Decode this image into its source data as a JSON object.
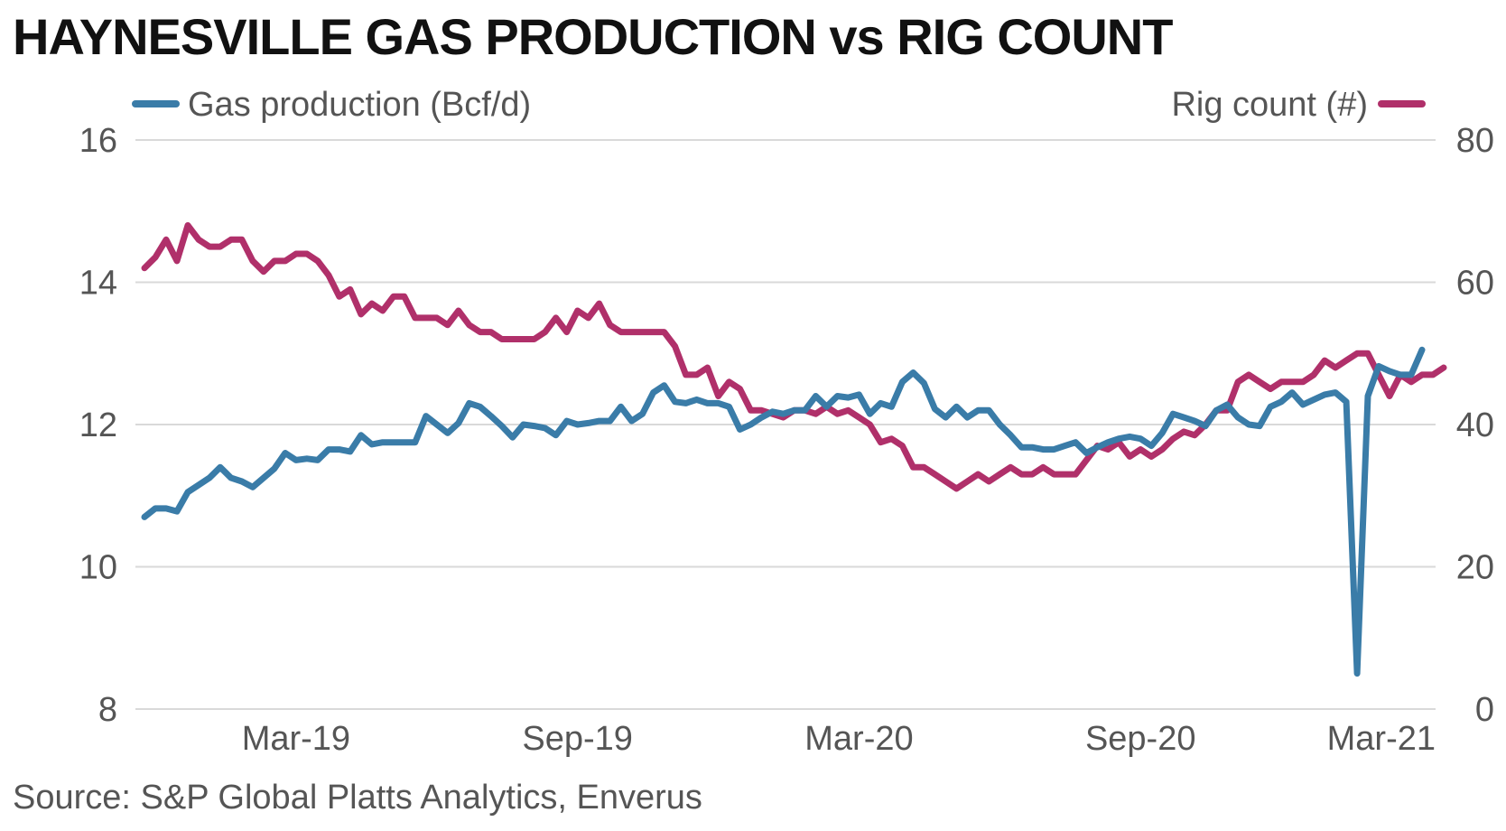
{
  "title": "HAYNESVILLE GAS PRODUCTION vs RIG COUNT",
  "source": "Source: S&P Global Platts Analytics, Enverus",
  "chart_data": {
    "type": "line",
    "title": "HAYNESVILLE GAS PRODUCTION vs RIG COUNT",
    "x_tick_labels": [
      "Mar-19",
      "Sep-19",
      "Mar-20",
      "Sep-20",
      "Mar-21"
    ],
    "x_tick_index": [
      14,
      40,
      66,
      92,
      118
    ],
    "y_left": {
      "label": "Gas production (Bcf/d)",
      "range": [
        8,
        16
      ],
      "ticks": [
        8,
        10,
        12,
        14,
        16
      ]
    },
    "y_right": {
      "label": "Rig count (#)",
      "range": [
        0,
        80
      ],
      "ticks": [
        0,
        20,
        40,
        60,
        80
      ]
    },
    "grid": true,
    "legend": "top",
    "colors": {
      "gas": "#3a7ca8",
      "rig": "#b0306a",
      "grid": "#d9d9d9"
    },
    "series": [
      {
        "name": "Gas production (Bcf/d)",
        "axis": "left",
        "color": "#3a7ca8",
        "values": [
          10.7,
          10.82,
          10.82,
          10.78,
          11.05,
          11.15,
          11.25,
          11.4,
          11.25,
          11.2,
          11.12,
          11.25,
          11.38,
          11.6,
          11.5,
          11.52,
          11.5,
          11.65,
          11.65,
          11.62,
          11.85,
          11.72,
          11.75,
          11.75,
          11.75,
          11.75,
          12.12,
          12.0,
          11.88,
          12.02,
          12.3,
          12.25,
          12.12,
          11.98,
          11.82,
          12.0,
          11.98,
          11.95,
          11.85,
          12.05,
          12.0,
          12.02,
          12.05,
          12.05,
          12.25,
          12.05,
          12.15,
          12.45,
          12.55,
          12.32,
          12.3,
          12.35,
          12.3,
          12.3,
          12.25,
          11.93,
          12.0,
          12.1,
          12.18,
          12.15,
          12.2,
          12.2,
          12.4,
          12.25,
          12.4,
          12.38,
          12.42,
          12.15,
          12.3,
          12.25,
          12.6,
          12.73,
          12.58,
          12.22,
          12.1,
          12.25,
          12.1,
          12.2,
          12.2,
          12.0,
          11.85,
          11.68,
          11.68,
          11.65,
          11.65,
          11.7,
          11.75,
          11.6,
          11.68,
          11.75,
          11.8,
          11.83,
          11.8,
          11.7,
          11.88,
          12.15,
          12.1,
          12.05,
          11.98,
          12.2,
          12.28,
          12.1,
          12.0,
          11.98,
          12.25,
          12.32,
          12.45,
          12.28,
          12.35,
          12.42,
          12.45,
          12.32,
          8.5,
          12.4,
          12.82,
          12.75,
          12.7,
          12.7,
          13.05
        ]
      },
      {
        "name": "Rig count (#)",
        "axis": "right",
        "color": "#b0306a",
        "values": [
          62,
          63.5,
          66,
          63,
          68,
          66,
          65,
          65,
          66,
          66,
          63,
          61.5,
          63,
          63,
          64,
          64,
          63,
          61,
          58,
          59,
          55.5,
          57,
          56,
          58,
          58,
          55,
          55,
          55,
          54,
          56,
          54,
          53,
          53,
          52,
          52,
          52,
          52,
          53,
          55,
          53,
          56,
          55,
          57,
          54,
          53,
          53,
          53,
          53,
          53,
          51,
          47,
          47,
          48,
          44,
          46,
          45,
          42,
          42,
          41.5,
          41,
          42,
          42,
          41.5,
          42.5,
          41.5,
          42,
          41,
          40,
          37.5,
          38,
          37,
          34,
          34,
          33,
          32,
          31,
          32,
          33,
          32,
          33,
          34,
          33,
          33,
          34,
          33,
          33,
          33,
          35,
          37,
          36.5,
          37.5,
          35.5,
          36.5,
          35.5,
          36.5,
          38,
          39,
          38.5,
          40,
          42,
          42,
          46,
          47,
          46,
          45,
          46,
          46,
          46,
          47,
          49,
          48,
          49,
          50,
          50,
          47,
          44,
          47,
          46,
          47,
          47,
          48
        ]
      }
    ]
  }
}
